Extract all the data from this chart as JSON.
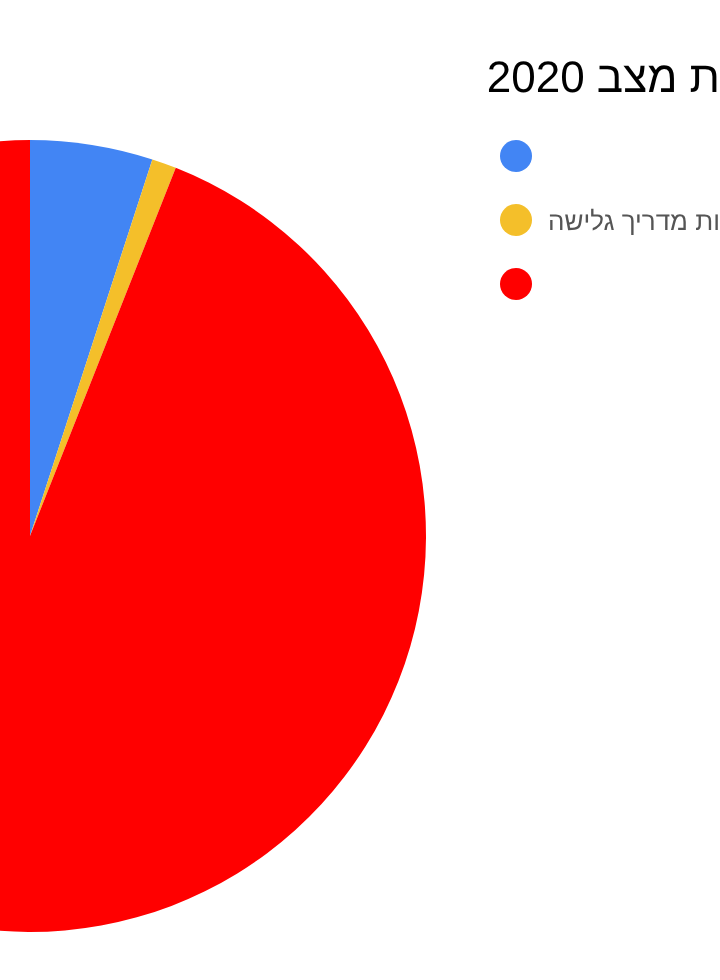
{
  "chart_data": {
    "type": "pie",
    "title": "ת מצב 2020",
    "categories": [
      null,
      "ות מדריך גלישה",
      null
    ],
    "values": [
      5,
      1,
      94
    ],
    "colors": [
      "#4285f4",
      "#f4bf2a",
      "#ff0000"
    ],
    "legend": "right"
  }
}
